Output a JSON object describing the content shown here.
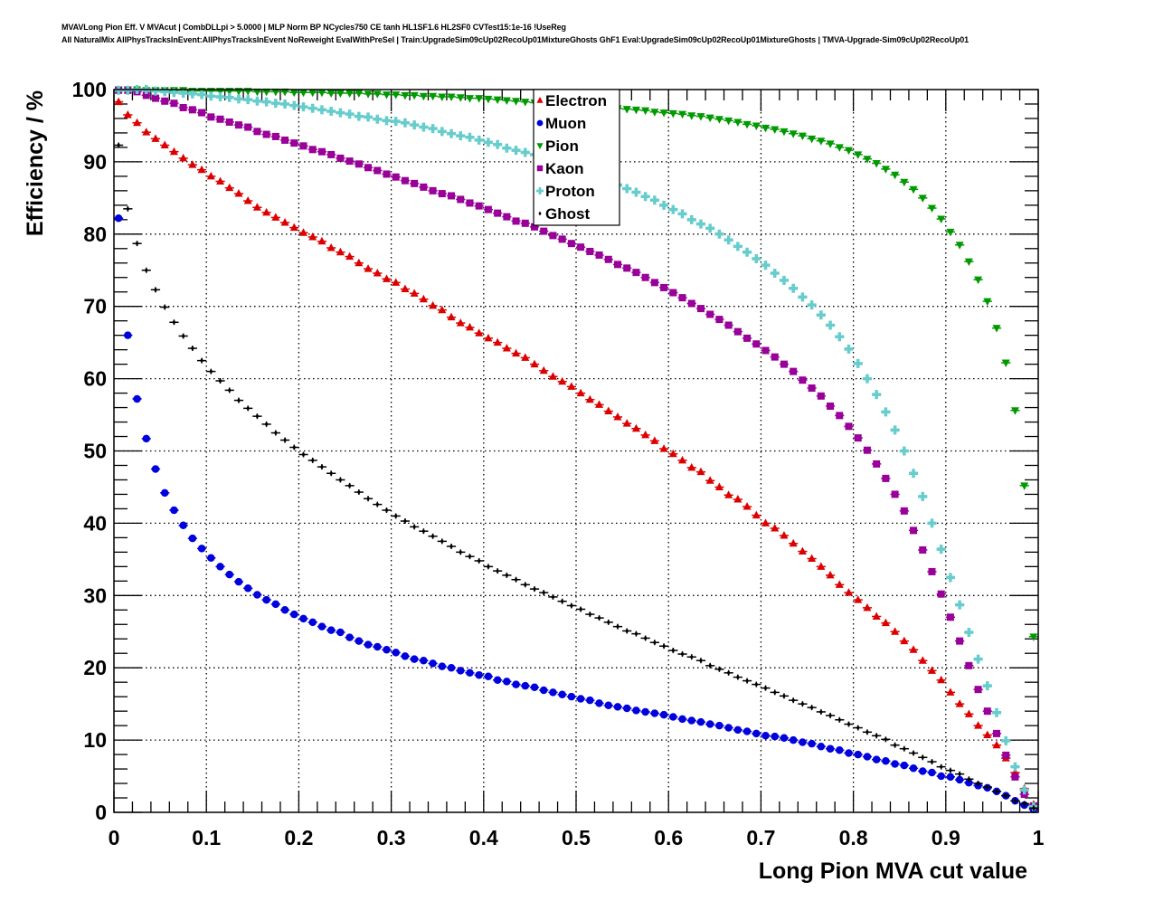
{
  "header": {
    "title_line1": "MVAVLong Pion Eff. V MVAcut | CombDLLpi > 5.0000 | MLP Norm BP NCycles750 CE tanh HL1SF1.6 HL2SF0 CVTest15:1e-16 !UseReg",
    "title_line2": "All NaturalMix AllPhysTracksInEvent:AllPhysTracksInEvent NoReweight EvalWithPreSel | Train:UpgradeSim09cUp02RecoUp01MixtureGhosts GhF1 Eval:UpgradeSim09cUp02RecoUp01MixtureGhosts | TMVA-Upgrade-Sim09cUp02RecoUp01"
  },
  "chart_data": {
    "type": "scatter",
    "xlabel": "Long Pion MVA cut value",
    "ylabel": "Efficiency / %",
    "xlim": [
      0,
      1
    ],
    "ylim": [
      0,
      100
    ],
    "grid": true,
    "legend_placement": "top-center",
    "x_ticks": [
      "0",
      "0.1",
      "0.2",
      "0.3",
      "0.4",
      "0.5",
      "0.6",
      "0.7",
      "0.8",
      "0.9",
      "1"
    ],
    "y_ticks": [
      "0",
      "10",
      "20",
      "30",
      "40",
      "50",
      "60",
      "70",
      "80",
      "90",
      "100"
    ],
    "x_bin_width": 0.01,
    "x": [
      0.005,
      0.015,
      0.025,
      0.035,
      0.045,
      0.055,
      0.065,
      0.075,
      0.085,
      0.095,
      0.105,
      0.115,
      0.125,
      0.135,
      0.145,
      0.155,
      0.165,
      0.175,
      0.185,
      0.195,
      0.205,
      0.215,
      0.225,
      0.235,
      0.245,
      0.255,
      0.265,
      0.275,
      0.285,
      0.295,
      0.305,
      0.315,
      0.325,
      0.335,
      0.345,
      0.355,
      0.365,
      0.375,
      0.385,
      0.395,
      0.405,
      0.415,
      0.425,
      0.435,
      0.445,
      0.455,
      0.465,
      0.475,
      0.485,
      0.495,
      0.505,
      0.515,
      0.525,
      0.535,
      0.545,
      0.555,
      0.565,
      0.575,
      0.585,
      0.595,
      0.605,
      0.615,
      0.625,
      0.635,
      0.645,
      0.655,
      0.665,
      0.675,
      0.685,
      0.695,
      0.705,
      0.715,
      0.725,
      0.735,
      0.745,
      0.755,
      0.765,
      0.775,
      0.785,
      0.795,
      0.805,
      0.815,
      0.825,
      0.835,
      0.845,
      0.855,
      0.865,
      0.875,
      0.885,
      0.895,
      0.905,
      0.915,
      0.925,
      0.935,
      0.945,
      0.955,
      0.965,
      0.975,
      0.985,
      0.995
    ],
    "series": [
      {
        "name": "Electron",
        "marker": "triangle-up",
        "color": "#dd0000",
        "values": [
          98.3,
          96.5,
          95.4,
          94.1,
          93.2,
          92.3,
          91.4,
          90.5,
          89.6,
          88.9,
          88.0,
          87.3,
          86.4,
          85.6,
          84.6,
          83.7,
          83.0,
          82.3,
          81.6,
          80.9,
          80.2,
          79.6,
          79.0,
          78.1,
          77.5,
          76.9,
          76.0,
          75.2,
          74.6,
          73.8,
          73.3,
          72.4,
          71.8,
          71.0,
          70.1,
          69.5,
          68.5,
          67.7,
          67.1,
          66.3,
          65.6,
          65.0,
          64.2,
          63.5,
          62.9,
          62.0,
          61.1,
          60.3,
          59.6,
          58.9,
          58.0,
          57.1,
          56.4,
          55.5,
          54.7,
          53.8,
          53.1,
          52.2,
          51.4,
          50.3,
          49.6,
          48.7,
          47.7,
          47.1,
          45.9,
          45.0,
          43.9,
          43.3,
          42.3,
          41.1,
          40.0,
          39.3,
          38.3,
          37.2,
          36.1,
          35.1,
          34.0,
          32.8,
          31.5,
          30.4,
          29.4,
          28.3,
          27.1,
          26.2,
          25.0,
          23.7,
          22.5,
          21.0,
          19.6,
          18.3,
          16.6,
          15.0,
          13.6,
          12.0,
          10.7,
          9.3,
          7.5,
          5.5,
          3.3,
          1.1
        ]
      },
      {
        "name": "Muon",
        "marker": "circle",
        "color": "#0000dd",
        "values": [
          82.2,
          66.0,
          57.2,
          51.7,
          47.5,
          44.2,
          41.8,
          39.7,
          37.9,
          36.5,
          35.2,
          34.0,
          32.9,
          31.9,
          31.0,
          30.1,
          29.4,
          28.8,
          28.0,
          27.4,
          26.8,
          26.3,
          25.7,
          25.2,
          24.9,
          24.2,
          23.7,
          23.2,
          22.9,
          22.5,
          22.1,
          21.6,
          21.2,
          21.0,
          20.6,
          20.2,
          20.0,
          19.6,
          19.3,
          19.0,
          18.8,
          18.3,
          18.1,
          17.7,
          17.5,
          17.3,
          16.9,
          16.6,
          16.3,
          16.0,
          15.7,
          15.5,
          15.1,
          14.8,
          14.6,
          14.4,
          14.1,
          13.9,
          13.7,
          13.5,
          13.2,
          12.9,
          12.7,
          12.5,
          12.2,
          12.0,
          11.7,
          11.4,
          11.2,
          10.9,
          10.6,
          10.5,
          10.3,
          10.0,
          9.7,
          9.5,
          9.1,
          8.8,
          8.6,
          8.2,
          8.0,
          7.7,
          7.3,
          7.1,
          6.7,
          6.5,
          6.1,
          5.7,
          5.5,
          5.0,
          4.9,
          4.5,
          4.1,
          3.7,
          3.4,
          2.9,
          2.3,
          1.6,
          1.0,
          0.4
        ]
      },
      {
        "name": "Pion",
        "marker": "triangle-down",
        "color": "#009900",
        "values": [
          100.0,
          100.0,
          100.0,
          99.9,
          99.9,
          99.9,
          99.9,
          99.9,
          99.8,
          99.8,
          99.8,
          99.8,
          99.8,
          99.8,
          99.8,
          99.7,
          99.7,
          99.7,
          99.7,
          99.6,
          99.6,
          99.6,
          99.6,
          99.5,
          99.5,
          99.5,
          99.5,
          99.4,
          99.4,
          99.3,
          99.3,
          99.2,
          99.2,
          99.1,
          99.1,
          99.0,
          99.0,
          98.9,
          98.8,
          98.8,
          98.7,
          98.6,
          98.5,
          98.4,
          98.3,
          98.2,
          98.1,
          98.0,
          97.9,
          97.8,
          97.7,
          97.6,
          97.5,
          97.4,
          97.4,
          97.3,
          97.2,
          97.1,
          96.9,
          96.8,
          96.7,
          96.6,
          96.4,
          96.3,
          96.1,
          95.9,
          95.7,
          95.5,
          95.2,
          95.0,
          94.7,
          94.5,
          94.2,
          93.9,
          93.6,
          93.2,
          92.9,
          92.5,
          92.0,
          91.6,
          91.0,
          90.4,
          89.8,
          89.0,
          88.2,
          87.2,
          86.2,
          85.0,
          83.6,
          82.1,
          80.3,
          78.5,
          76.2,
          73.7,
          70.7,
          67.0,
          62.2,
          55.6,
          45.2,
          24.3
        ]
      },
      {
        "name": "Kaon",
        "marker": "square",
        "color": "#990099",
        "values": [
          99.9,
          99.9,
          99.7,
          99.2,
          98.8,
          98.4,
          98.1,
          97.5,
          97.2,
          96.8,
          96.2,
          95.9,
          95.5,
          95.1,
          94.8,
          94.2,
          93.8,
          93.5,
          93.0,
          92.6,
          92.2,
          91.7,
          91.4,
          91.0,
          90.5,
          90.1,
          89.7,
          89.2,
          88.8,
          88.3,
          87.9,
          87.4,
          87.0,
          86.5,
          86.0,
          85.6,
          85.3,
          84.8,
          84.3,
          83.9,
          83.4,
          82.9,
          82.4,
          81.8,
          81.5,
          81.0,
          80.4,
          79.8,
          79.3,
          78.7,
          78.2,
          77.6,
          77.1,
          76.5,
          75.8,
          75.3,
          74.7,
          74.0,
          73.3,
          72.6,
          71.9,
          71.2,
          70.4,
          69.7,
          68.9,
          68.2,
          67.4,
          66.5,
          65.6,
          64.8,
          63.9,
          63.0,
          62.0,
          61.0,
          59.8,
          58.7,
          57.6,
          56.2,
          54.9,
          53.4,
          51.8,
          50.1,
          48.2,
          46.2,
          44.0,
          41.7,
          39.0,
          36.3,
          33.3,
          30.2,
          27.0,
          23.7,
          20.3,
          17.0,
          14.0,
          10.9,
          7.9,
          4.9,
          2.5,
          0.9
        ]
      },
      {
        "name": "Proton",
        "marker": "cross",
        "color": "#66cccc",
        "values": [
          99.9,
          99.9,
          100.0,
          100.0,
          99.8,
          99.7,
          99.6,
          99.5,
          99.4,
          99.3,
          99.1,
          99.0,
          98.9,
          98.7,
          98.6,
          98.4,
          98.3,
          98.1,
          98.0,
          97.8,
          97.6,
          97.4,
          97.2,
          97.0,
          96.8,
          96.6,
          96.3,
          96.2,
          95.9,
          95.7,
          95.6,
          95.4,
          95.1,
          94.8,
          94.6,
          94.2,
          93.9,
          93.6,
          93.4,
          93.0,
          92.7,
          92.4,
          91.9,
          91.6,
          91.3,
          91.0,
          90.6,
          90.2,
          89.9,
          89.5,
          89.1,
          88.5,
          87.9,
          87.4,
          86.8,
          86.3,
          85.8,
          85.2,
          84.7,
          84.0,
          83.4,
          82.8,
          82.0,
          81.4,
          80.8,
          80.0,
          79.2,
          78.3,
          77.5,
          76.6,
          75.7,
          74.6,
          73.6,
          72.5,
          71.3,
          70.2,
          68.8,
          67.4,
          65.8,
          64.1,
          62.1,
          60.0,
          57.8,
          55.4,
          52.9,
          50.0,
          46.9,
          43.7,
          40.0,
          36.4,
          32.5,
          28.7,
          24.9,
          21.2,
          17.5,
          13.8,
          9.9,
          6.3,
          3.1,
          0.8
        ]
      },
      {
        "name": "Ghost",
        "marker": "diamond",
        "color": "#000000",
        "values": [
          92.3,
          83.5,
          78.7,
          75.0,
          72.3,
          69.9,
          67.8,
          65.9,
          64.2,
          62.5,
          61.0,
          59.7,
          58.4,
          57.0,
          55.9,
          54.8,
          53.7,
          52.5,
          51.5,
          50.5,
          49.5,
          48.7,
          47.8,
          46.9,
          46.0,
          45.2,
          44.3,
          43.4,
          42.6,
          41.8,
          41.0,
          40.3,
          39.5,
          38.9,
          38.2,
          37.5,
          36.8,
          36.0,
          35.4,
          34.8,
          34.0,
          33.4,
          32.8,
          32.2,
          31.5,
          30.9,
          30.4,
          29.8,
          29.2,
          28.6,
          28.1,
          27.4,
          26.9,
          26.3,
          25.7,
          25.1,
          24.7,
          24.1,
          23.5,
          23.0,
          22.4,
          21.9,
          21.5,
          21.0,
          20.3,
          19.8,
          19.3,
          18.7,
          18.2,
          17.7,
          17.2,
          16.6,
          16.1,
          15.5,
          15.0,
          14.5,
          13.9,
          13.4,
          12.8,
          12.2,
          11.7,
          11.1,
          10.6,
          10.1,
          9.3,
          8.8,
          8.2,
          7.6,
          7.0,
          6.3,
          5.8,
          5.3,
          4.6,
          4.0,
          3.5,
          2.9,
          2.3,
          1.6,
          1.2,
          0.6
        ]
      }
    ]
  }
}
